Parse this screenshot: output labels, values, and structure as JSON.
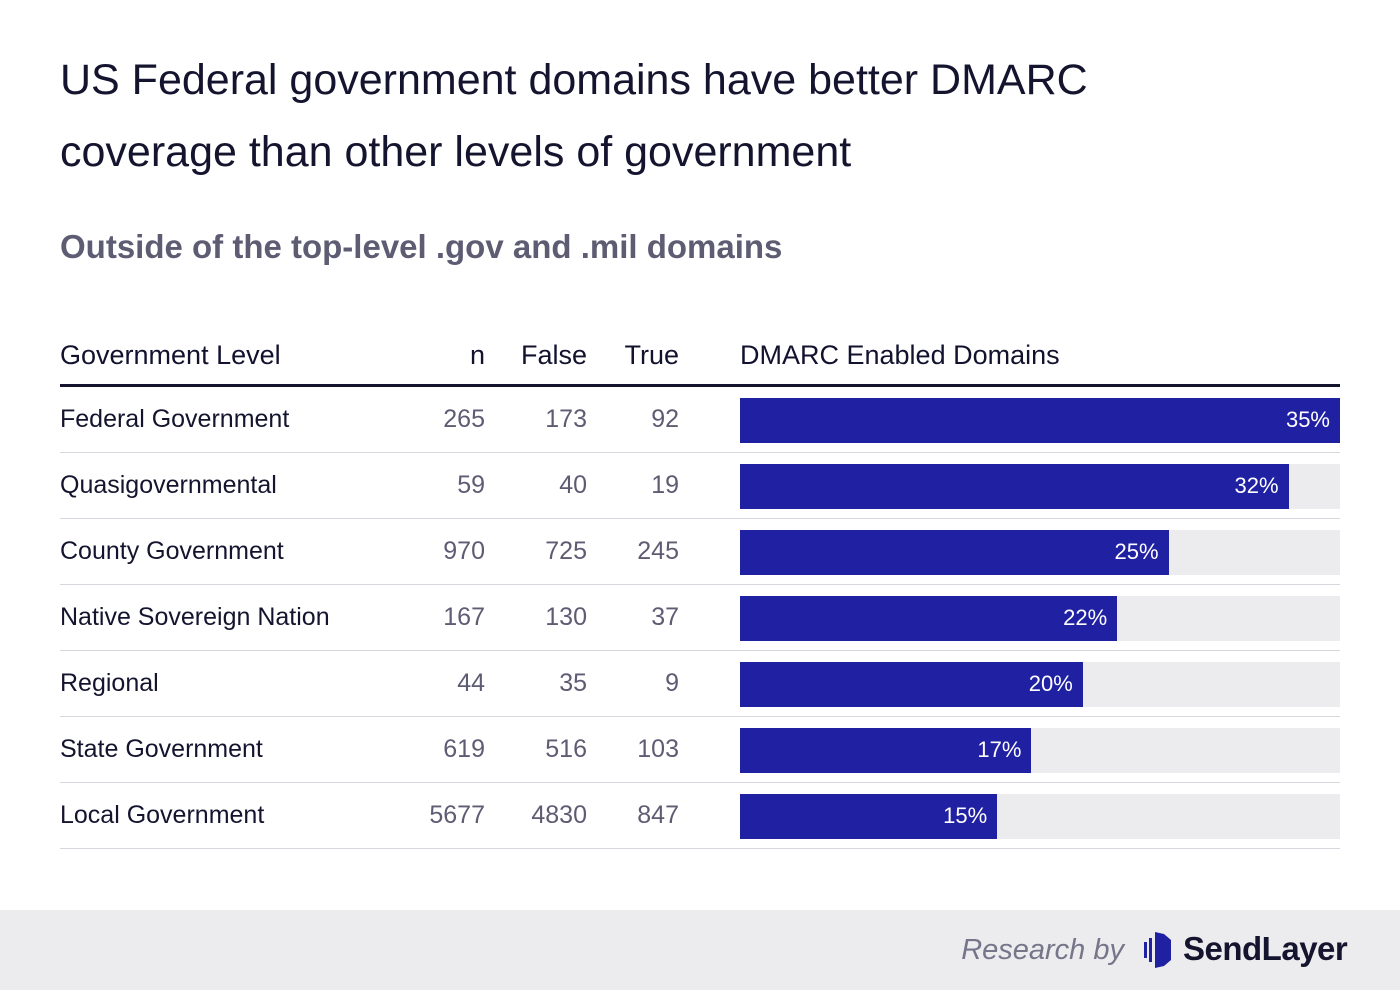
{
  "chart_data": {
    "type": "table",
    "title": "US Federal government domains have better DMARC coverage than other levels of government",
    "subtitle": "Outside of the top-level .gov and .mil domains",
    "columns": [
      "Government Level",
      "n",
      "False",
      "True",
      "DMARC Enabled Domains"
    ],
    "rows": [
      {
        "level": "Federal Government",
        "n": "265",
        "false": "173",
        "true": "92",
        "pct": 35,
        "pct_label": "35%"
      },
      {
        "level": "Quasigovernmental",
        "n": "59",
        "false": "40",
        "true": "19",
        "pct": 32,
        "pct_label": "32%"
      },
      {
        "level": "County Government",
        "n": "970",
        "false": "725",
        "true": "245",
        "pct": 25,
        "pct_label": "25%"
      },
      {
        "level": "Native Sovereign Nation",
        "n": "167",
        "false": "130",
        "true": "37",
        "pct": 22,
        "pct_label": "22%"
      },
      {
        "level": "Regional",
        "n": "44",
        "false": "35",
        "true": "9",
        "pct": 20,
        "pct_label": "20%"
      },
      {
        "level": "State Government",
        "n": "619",
        "false": "516",
        "true": "103",
        "pct": 17,
        "pct_label": "17%"
      },
      {
        "level": "Local Government",
        "n": "5677",
        "false": "4830",
        "true": "847",
        "pct": 15,
        "pct_label": "15%"
      }
    ],
    "bar_max": 35,
    "bar_color": "#2020a3",
    "track_color": "#ececee"
  },
  "footer": {
    "research_by": "Research by",
    "brand": "SendLayer",
    "logo_icon": "sendlayer-logo-icon"
  }
}
